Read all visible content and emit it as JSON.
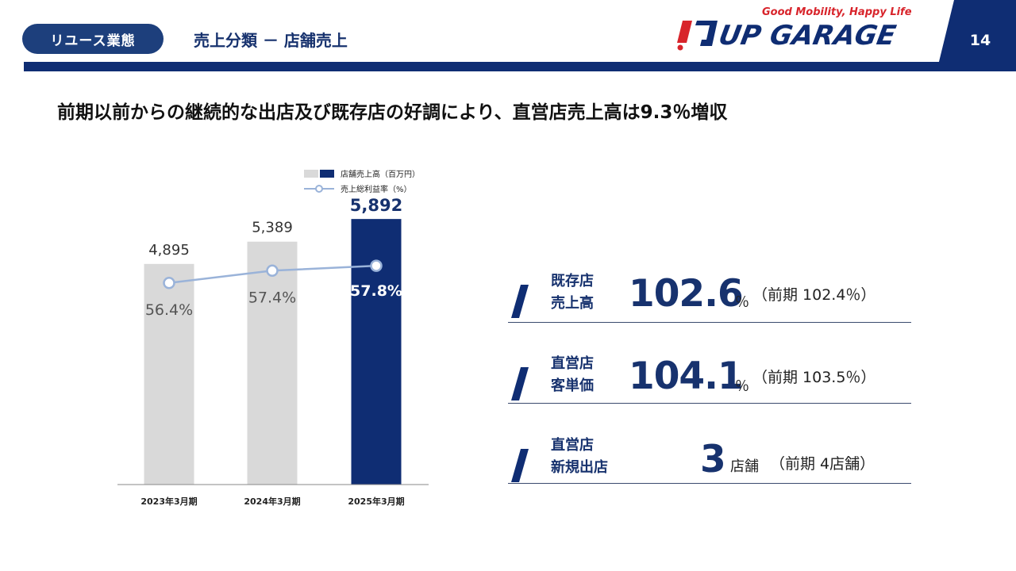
{
  "header": {
    "section_pill": "リユース業態",
    "title": "売上分類 － 店舗売上",
    "logo_tagline": "Good Mobility, Happy Life",
    "logo_text": "UP GARAGE",
    "page_number": "14",
    "colors": {
      "navy": "#0f2d73",
      "pill": "#1d3f7c",
      "red": "#d8242b"
    }
  },
  "headline": "前期以前からの継続的な出店及び既存店の好調により、直営店売上高は9.3％増収",
  "chart_data": {
    "type": "bar",
    "categories": [
      "2023年3月期",
      "2024年3月期",
      "2025年3月期"
    ],
    "series": [
      {
        "name": "店舗売上高（百万円）",
        "values": [
          4895,
          5389,
          5892
        ],
        "labels": [
          "4,895",
          "5,389",
          "5,892"
        ],
        "colors": [
          "#d9d9d9",
          "#d9d9d9",
          "#0f2d73"
        ]
      },
      {
        "name": "売上総利益率（%）",
        "type": "line",
        "values": [
          56.4,
          57.4,
          57.8
        ],
        "labels": [
          "56.4%",
          "57.4%",
          "57.8%"
        ],
        "color": "#9ab3d9"
      }
    ],
    "ylim": [
      0,
      6000
    ],
    "line_ylim": [
      40,
      62
    ],
    "legend_position": "top"
  },
  "kpis": [
    {
      "label_line1": "既存店",
      "label_line2": "売上高",
      "value": "102.6",
      "unit": "％",
      "prev": "（前期 102.4％）"
    },
    {
      "label_line1": "直営店",
      "label_line2": "客単価",
      "value": "104.1",
      "unit": "％",
      "prev": "（前期 103.5％）"
    },
    {
      "label_line1": "直営店",
      "label_line2": "新規出店",
      "value": "3",
      "unit": "店舗",
      "prev": "（前期 4店舗）"
    }
  ]
}
